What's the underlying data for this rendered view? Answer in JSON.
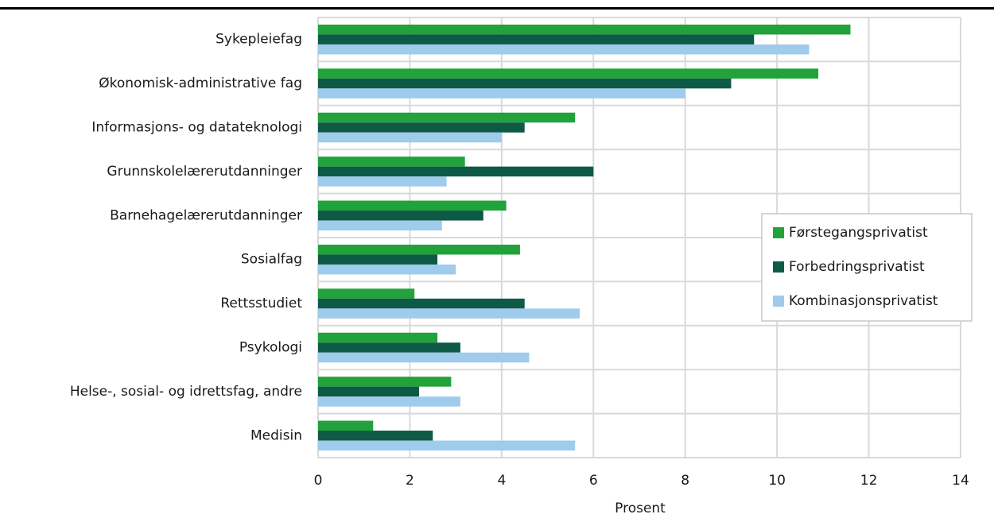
{
  "chart_data": {
    "type": "bar",
    "orientation": "horizontal",
    "title": "",
    "xlabel": "Prosent",
    "ylabel": "",
    "xlim": [
      0,
      14
    ],
    "xticks": [
      0,
      2,
      4,
      6,
      8,
      10,
      12,
      14
    ],
    "grid": true,
    "legend_position": "right",
    "categories": [
      "Sykepleiefag",
      "Økonomisk-administrative fag",
      "Informasjons- og datateknologi",
      "Grunnskolelærerutdanninger",
      "Barnehagelærerutdanninger",
      "Sosialfag",
      "Rettsstudiet",
      "Psykologi",
      "Helse-, sosial- og idrettsfag, andre",
      "Medisin"
    ],
    "series": [
      {
        "name": "Førstegangsprivatist",
        "color": "#22a23a",
        "values": [
          11.6,
          10.9,
          5.6,
          3.2,
          4.1,
          4.4,
          2.1,
          2.6,
          2.9,
          1.2
        ]
      },
      {
        "name": "Forbedringsprivatist",
        "color": "#0d5a46",
        "values": [
          9.5,
          9.0,
          4.5,
          6.0,
          3.6,
          2.6,
          4.5,
          3.1,
          2.2,
          2.5
        ]
      },
      {
        "name": "Kombinasjonsprivatist",
        "color": "#9fcbec",
        "values": [
          10.7,
          8.0,
          4.0,
          2.8,
          2.7,
          3.0,
          5.7,
          4.6,
          3.1,
          5.6
        ]
      }
    ]
  }
}
